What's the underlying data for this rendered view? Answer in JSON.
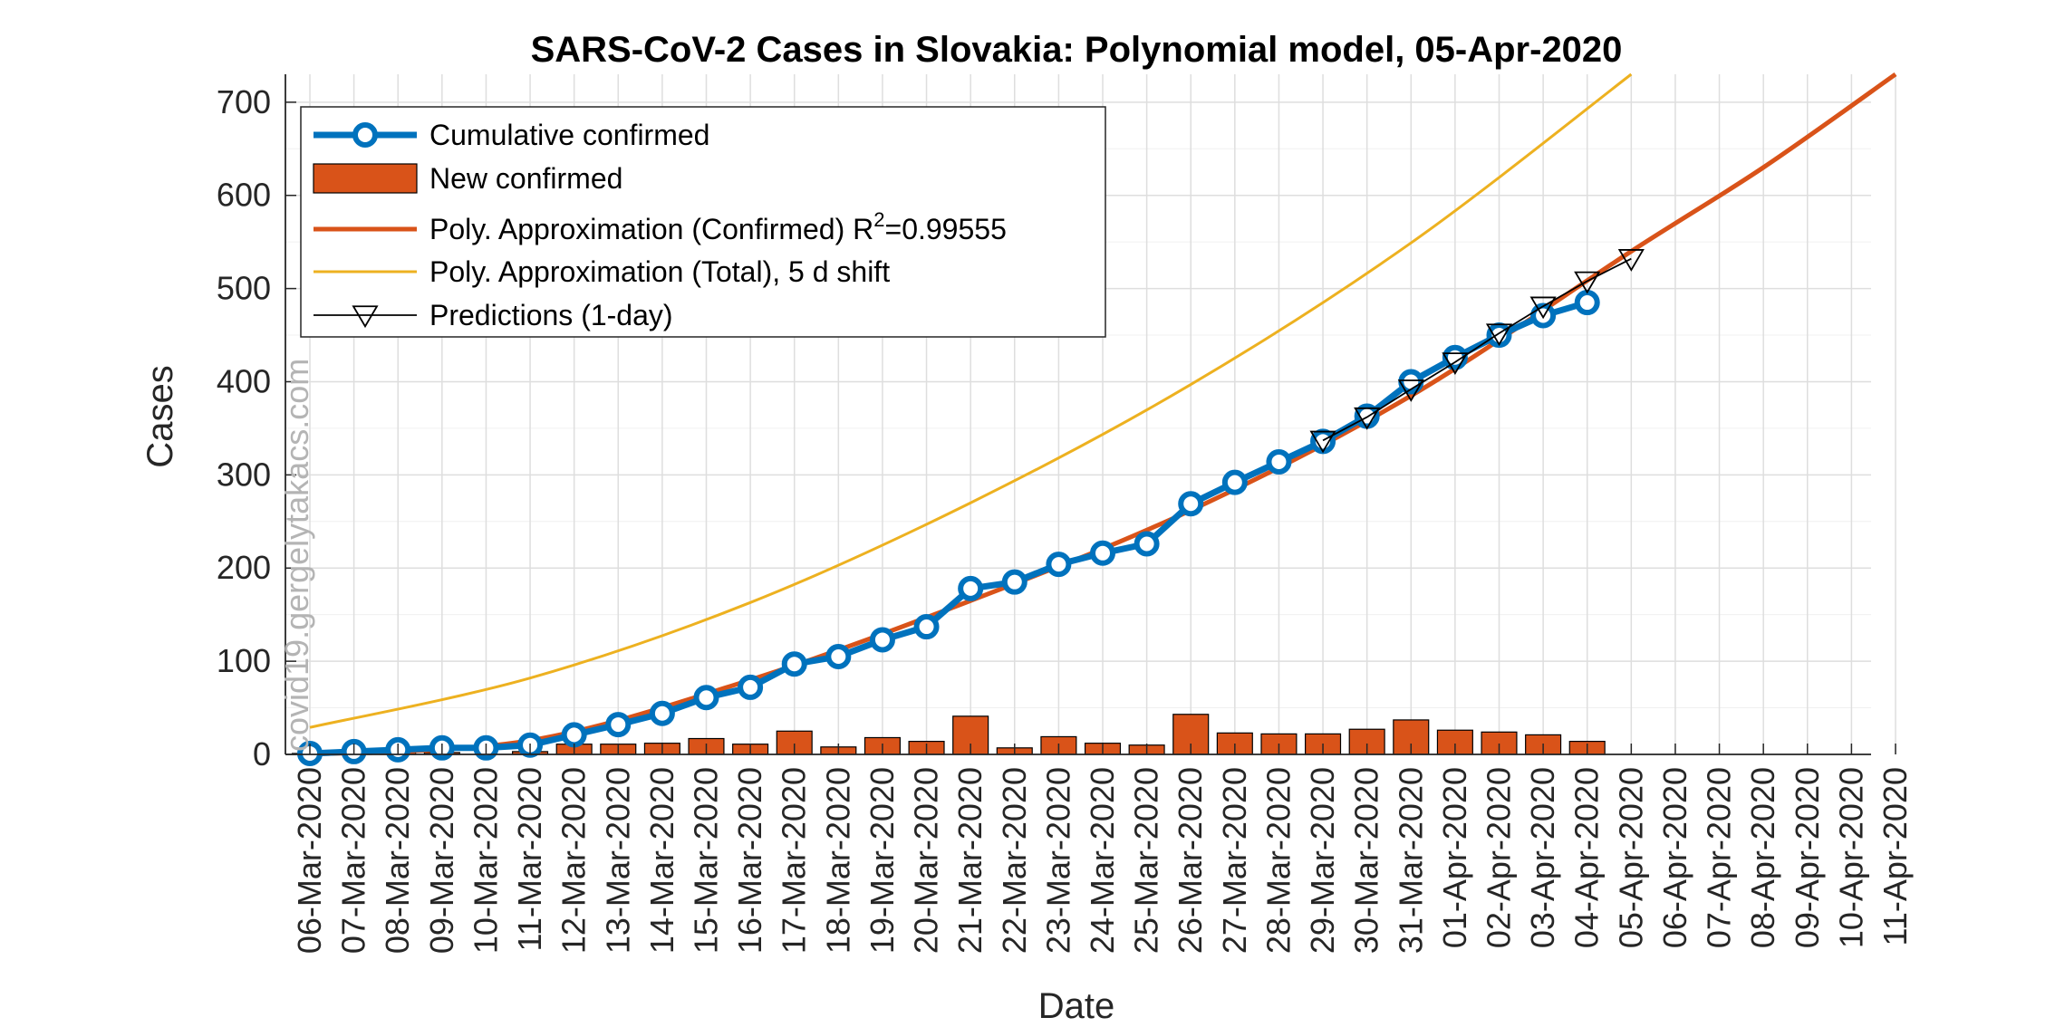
{
  "chart_data": {
    "type": "line",
    "title": "SARS-CoV-2 Cases in Slovakia: Polynomial model, 05-Apr-2020",
    "xlabel": "Date",
    "ylabel": "Cases",
    "ylim": [
      0,
      730
    ],
    "yticks": [
      0,
      100,
      200,
      300,
      400,
      500,
      600,
      700
    ],
    "ytick_labels": [
      "0",
      "100",
      "200",
      "300",
      "400",
      "500",
      "600",
      "700"
    ],
    "x_dates": [
      "06-Mar-2020",
      "07-Mar-2020",
      "08-Mar-2020",
      "09-Mar-2020",
      "10-Mar-2020",
      "11-Mar-2020",
      "12-Mar-2020",
      "13-Mar-2020",
      "14-Mar-2020",
      "15-Mar-2020",
      "16-Mar-2020",
      "17-Mar-2020",
      "18-Mar-2020",
      "19-Mar-2020",
      "20-Mar-2020",
      "21-Mar-2020",
      "22-Mar-2020",
      "23-Mar-2020",
      "24-Mar-2020",
      "25-Mar-2020",
      "26-Mar-2020",
      "27-Mar-2020",
      "28-Mar-2020",
      "29-Mar-2020",
      "30-Mar-2020",
      "31-Mar-2020",
      "01-Apr-2020",
      "02-Apr-2020",
      "03-Apr-2020",
      "04-Apr-2020",
      "05-Apr-2020",
      "06-Apr-2020",
      "07-Apr-2020",
      "08-Apr-2020",
      "09-Apr-2020",
      "10-Apr-2020",
      "11-Apr-2020"
    ],
    "grid": true,
    "legend_position": "top-left",
    "watermark": "covid19.gergelytakacs.com",
    "series": [
      {
        "name": "Cumulative confirmed",
        "kind": "line-markers",
        "color": "#0072BD",
        "dates": [
          "06-Mar-2020",
          "07-Mar-2020",
          "08-Mar-2020",
          "09-Mar-2020",
          "10-Mar-2020",
          "11-Mar-2020",
          "12-Mar-2020",
          "13-Mar-2020",
          "14-Mar-2020",
          "15-Mar-2020",
          "16-Mar-2020",
          "17-Mar-2020",
          "18-Mar-2020",
          "19-Mar-2020",
          "20-Mar-2020",
          "21-Mar-2020",
          "22-Mar-2020",
          "23-Mar-2020",
          "24-Mar-2020",
          "25-Mar-2020",
          "26-Mar-2020",
          "27-Mar-2020",
          "28-Mar-2020",
          "29-Mar-2020",
          "30-Mar-2020",
          "31-Mar-2020",
          "01-Apr-2020",
          "02-Apr-2020",
          "03-Apr-2020",
          "04-Apr-2020"
        ],
        "values": [
          1,
          3,
          5,
          7,
          7,
          10,
          21,
          32,
          44,
          61,
          72,
          97,
          105,
          123,
          137,
          178,
          185,
          204,
          216,
          226,
          269,
          292,
          314,
          336,
          363,
          400,
          426,
          450,
          471,
          485
        ]
      },
      {
        "name": "New confirmed",
        "kind": "bar",
        "color": "#D95319",
        "dates": [
          "06-Mar-2020",
          "07-Mar-2020",
          "08-Mar-2020",
          "09-Mar-2020",
          "10-Mar-2020",
          "11-Mar-2020",
          "12-Mar-2020",
          "13-Mar-2020",
          "14-Mar-2020",
          "15-Mar-2020",
          "16-Mar-2020",
          "17-Mar-2020",
          "18-Mar-2020",
          "19-Mar-2020",
          "20-Mar-2020",
          "21-Mar-2020",
          "22-Mar-2020",
          "23-Mar-2020",
          "24-Mar-2020",
          "25-Mar-2020",
          "26-Mar-2020",
          "27-Mar-2020",
          "28-Mar-2020",
          "29-Mar-2020",
          "30-Mar-2020",
          "31-Mar-2020",
          "01-Apr-2020",
          "02-Apr-2020",
          "03-Apr-2020",
          "04-Apr-2020"
        ],
        "values": [
          1,
          2,
          2,
          2,
          0,
          3,
          11,
          11,
          12,
          17,
          11,
          25,
          8,
          18,
          14,
          41,
          7,
          19,
          12,
          10,
          43,
          23,
          22,
          22,
          27,
          37,
          26,
          24,
          21,
          14
        ]
      },
      {
        "name": "Poly. Approximation (Confirmed)",
        "legend_main": "Poly. Approximation (Confirmed) R",
        "legend_sup": "2",
        "legend_tail": "=0.99555",
        "kind": "curve",
        "color": "#D95319",
        "dates": [
          "06-Mar-2020",
          "11-Mar-2020",
          "16-Mar-2020",
          "21-Mar-2020",
          "26-Mar-2020",
          "31-Mar-2020",
          "05-Apr-2020",
          "08-Apr-2020",
          "11-Apr-2020"
        ],
        "values": [
          0,
          15,
          80,
          165,
          262,
          385,
          540,
          630,
          730
        ]
      },
      {
        "name": "Poly. Approximation (Total), 5 d shift",
        "kind": "curve",
        "color": "#EDB120",
        "dates": [
          "06-Mar-2020",
          "11-Mar-2020",
          "16-Mar-2020",
          "21-Mar-2020",
          "26-Mar-2020",
          "31-Mar-2020",
          "05-Apr-2020"
        ],
        "values": [
          29,
          82,
          163,
          270,
          397,
          549,
          730
        ]
      },
      {
        "name": "Predictions (1-day)",
        "kind": "line-triangles",
        "color": "#000000",
        "dates": [
          "29-Mar-2020",
          "30-Mar-2020",
          "31-Mar-2020",
          "01-Apr-2020",
          "02-Apr-2020",
          "03-Apr-2020",
          "04-Apr-2020",
          "05-Apr-2020"
        ],
        "values": [
          337,
          362,
          392,
          421,
          452,
          481,
          508,
          532
        ]
      }
    ]
  }
}
